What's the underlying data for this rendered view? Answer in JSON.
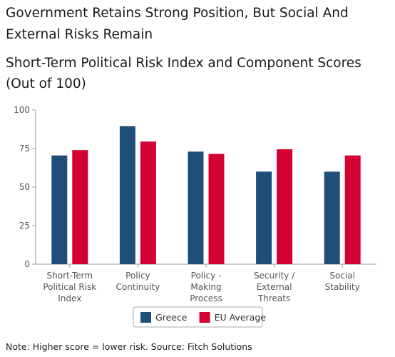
{
  "header": {
    "title": "Government Retains Strong Position, But Social And External Risks Remain",
    "subtitle": "Short-Term Political Risk Index and Component Scores (Out of 100)"
  },
  "footer": {
    "note": "Note: Higher score = lower risk. Source: Fitch Solutions"
  },
  "colors": {
    "greece": "#1f4e79",
    "eu_average": "#d50032",
    "axis": "#999999",
    "text": "#555555"
  },
  "chart_data": {
    "type": "bar",
    "categories": [
      [
        "Short-Term",
        "Political Risk",
        "Index"
      ],
      [
        "Policy",
        "Continuity"
      ],
      [
        "Policy -",
        "Making",
        "Process"
      ],
      [
        "Security /",
        "External",
        "Threats"
      ],
      [
        "Social",
        "Stability"
      ]
    ],
    "series": [
      {
        "name": "Greece",
        "color": "#1f4e79",
        "values": [
          70.5,
          89.5,
          73,
          60,
          60
        ]
      },
      {
        "name": "EU Average",
        "color": "#d50032",
        "values": [
          74,
          79.5,
          71.5,
          74.5,
          70.5
        ]
      }
    ],
    "ylim": [
      0,
      100
    ],
    "yticks": [
      0,
      25,
      50,
      75,
      100
    ],
    "grid": false,
    "legend": "bottom"
  }
}
